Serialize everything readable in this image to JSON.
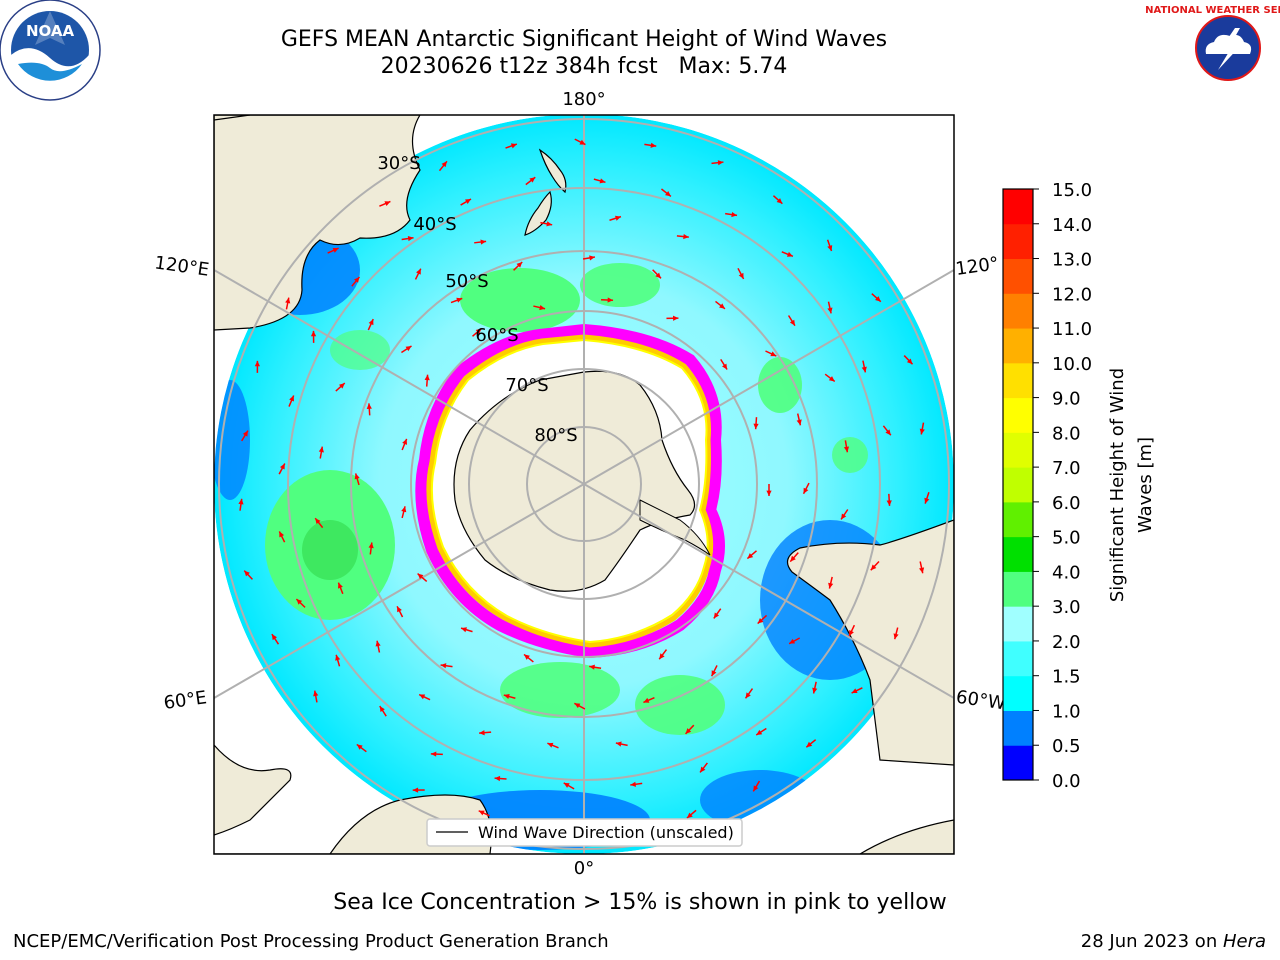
{
  "title": {
    "line1": "GEFS MEAN Antarctic Significant Height of Wind Waves",
    "line2": "20230626 t12z 384h fcst   Max: 5.74"
  },
  "map": {
    "projection": "south-polar-stereographic",
    "longitude_labels": [
      "180°",
      "120°E",
      "120°",
      "60°E",
      "60°W",
      "0°"
    ],
    "latitude_labels": [
      "30°S",
      "40°S",
      "50°S",
      "60°S",
      "70°S",
      "80°S"
    ],
    "legend": "Wind Wave Direction (unscaled)",
    "arrow_color": "#ff0000",
    "land_color": "#efebd8",
    "ice_edge_colors": [
      "#ff00ff",
      "#ff66cc",
      "#ffcc00",
      "#ffff00"
    ]
  },
  "colorbar": {
    "label_line1": "Significant Height of Wind",
    "label_line2": "Waves [m]",
    "ticks": [
      "0.0",
      "0.5",
      "1.0",
      "1.5",
      "2.0",
      "3.0",
      "4.0",
      "5.0",
      "6.0",
      "7.0",
      "8.0",
      "9.0",
      "10.0",
      "11.0",
      "12.0",
      "13.0",
      "14.0",
      "15.0"
    ],
    "colors": [
      "#0000ff",
      "#0080ff",
      "#00ffff",
      "#40ffff",
      "#a0ffff",
      "#50ff80",
      "#00e000",
      "#60f000",
      "#c0ff00",
      "#e0ff00",
      "#ffff00",
      "#ffe000",
      "#ffb000",
      "#ff8000",
      "#ff5000",
      "#ff2000",
      "#ff0000"
    ]
  },
  "footer": {
    "note": "Sea Ice Concentration > 15% is shown in pink to yellow",
    "left": "NCEP/EMC/Verification Post Processing Product Generation Branch",
    "right_prefix": "28 Jun 2023 on ",
    "right_host": "Hera"
  },
  "logos": {
    "noaa": "NOAA",
    "nws": "NATIONAL WEATHER SERVICE"
  }
}
